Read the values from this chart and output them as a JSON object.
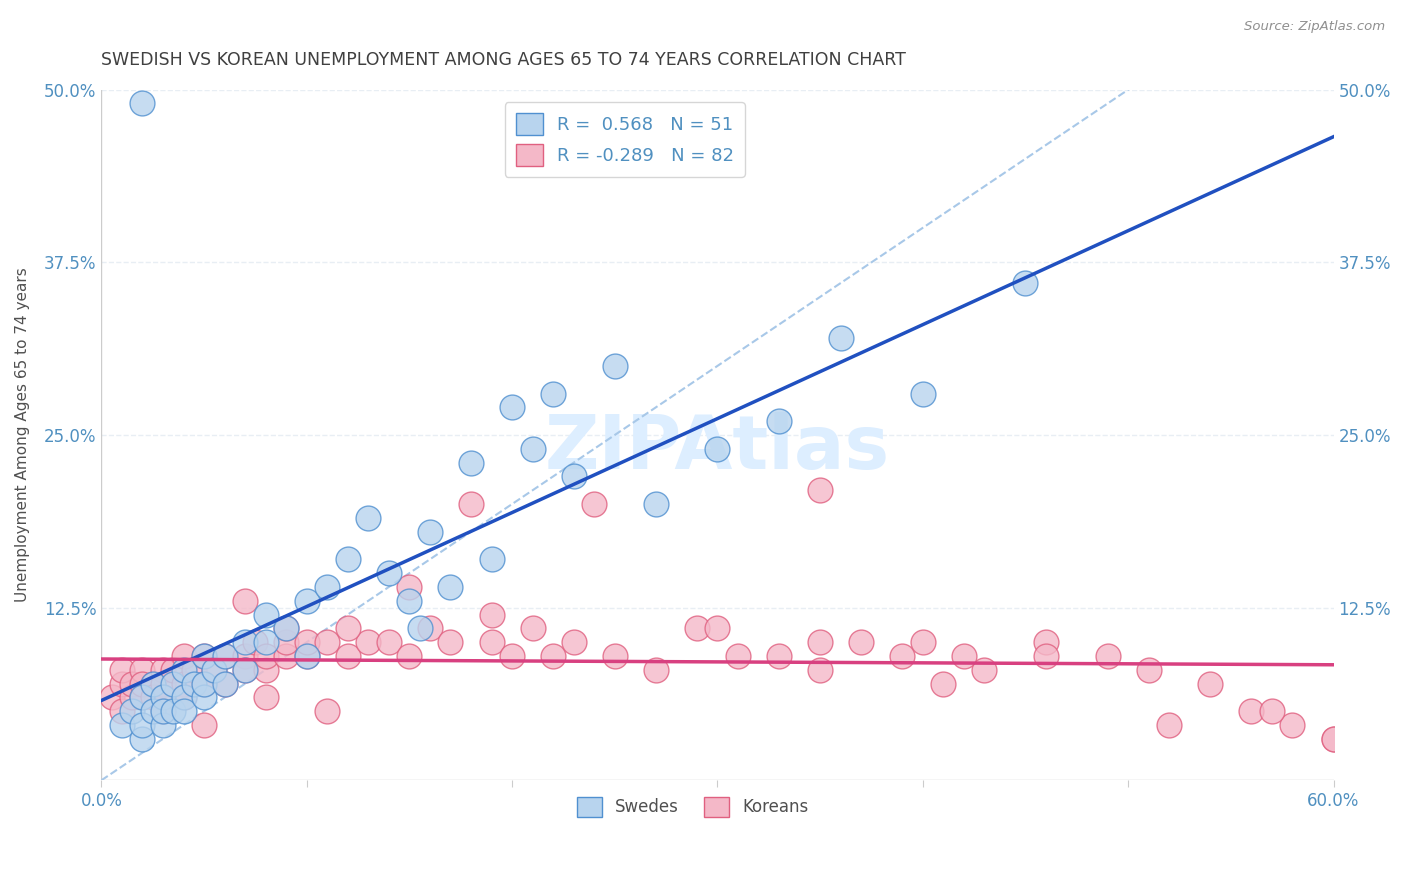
{
  "title": "SWEDISH VS KOREAN UNEMPLOYMENT AMONG AGES 65 TO 74 YEARS CORRELATION CHART",
  "source": "Source: ZipAtlas.com",
  "ylabel": "Unemployment Among Ages 65 to 74 years",
  "xlim": [
    0,
    0.6
  ],
  "ylim": [
    0,
    0.5
  ],
  "xticks": [
    0.0,
    0.1,
    0.2,
    0.3,
    0.4,
    0.5,
    0.6
  ],
  "xticklabels": [
    "0.0%",
    "",
    "",
    "",
    "",
    "",
    "60.0%"
  ],
  "ytick_positions": [
    0.0,
    0.125,
    0.25,
    0.375,
    0.5
  ],
  "ytick_labels_left": [
    "",
    "12.5%",
    "25.0%",
    "37.5%",
    "50.0%"
  ],
  "ytick_labels_right": [
    "",
    "12.5%",
    "25.0%",
    "37.5%",
    "50.0%"
  ],
  "legend_blue_r": "0.568",
  "legend_blue_n": "51",
  "legend_pink_r": "-0.289",
  "legend_pink_n": "82",
  "swede_fill": "#b8d4ee",
  "swede_edge": "#5090d0",
  "korean_fill": "#f4b8c8",
  "korean_edge": "#e06080",
  "blue_line_color": "#2050c0",
  "pink_line_color": "#d84080",
  "ref_line_color": "#a8c8e8",
  "title_color": "#404040",
  "source_color": "#909090",
  "axis_label_color": "#505050",
  "tick_color": "#5090c0",
  "watermark_color": "#ddeeff",
  "background_color": "#ffffff",
  "grid_color": "#e8eef4",
  "swedes_x": [
    0.01,
    0.015,
    0.02,
    0.02,
    0.02,
    0.025,
    0.025,
    0.03,
    0.03,
    0.03,
    0.035,
    0.035,
    0.04,
    0.04,
    0.04,
    0.045,
    0.05,
    0.05,
    0.05,
    0.055,
    0.06,
    0.06,
    0.07,
    0.07,
    0.08,
    0.08,
    0.09,
    0.1,
    0.1,
    0.11,
    0.12,
    0.13,
    0.14,
    0.15,
    0.155,
    0.16,
    0.17,
    0.18,
    0.19,
    0.2,
    0.21,
    0.22,
    0.23,
    0.25,
    0.27,
    0.3,
    0.33,
    0.36,
    0.4,
    0.45,
    0.02
  ],
  "swedes_y": [
    0.04,
    0.05,
    0.03,
    0.06,
    0.04,
    0.05,
    0.07,
    0.04,
    0.06,
    0.05,
    0.07,
    0.05,
    0.06,
    0.08,
    0.05,
    0.07,
    0.06,
    0.09,
    0.07,
    0.08,
    0.07,
    0.09,
    0.08,
    0.1,
    0.1,
    0.12,
    0.11,
    0.09,
    0.13,
    0.14,
    0.16,
    0.19,
    0.15,
    0.13,
    0.11,
    0.18,
    0.14,
    0.23,
    0.16,
    0.27,
    0.24,
    0.28,
    0.22,
    0.3,
    0.2,
    0.24,
    0.26,
    0.32,
    0.28,
    0.36,
    0.49
  ],
  "koreans_x": [
    0.005,
    0.01,
    0.01,
    0.01,
    0.015,
    0.015,
    0.02,
    0.02,
    0.02,
    0.025,
    0.025,
    0.03,
    0.03,
    0.03,
    0.035,
    0.04,
    0.04,
    0.04,
    0.045,
    0.05,
    0.05,
    0.055,
    0.06,
    0.06,
    0.07,
    0.07,
    0.075,
    0.08,
    0.08,
    0.09,
    0.09,
    0.1,
    0.1,
    0.11,
    0.12,
    0.13,
    0.14,
    0.15,
    0.16,
    0.17,
    0.18,
    0.19,
    0.2,
    0.21,
    0.22,
    0.23,
    0.25,
    0.27,
    0.29,
    0.31,
    0.33,
    0.35,
    0.37,
    0.39,
    0.41,
    0.43,
    0.46,
    0.49,
    0.51,
    0.54,
    0.56,
    0.58,
    0.6,
    0.07,
    0.09,
    0.12,
    0.15,
    0.19,
    0.24,
    0.3,
    0.35,
    0.4,
    0.46,
    0.52,
    0.57,
    0.6,
    0.03,
    0.05,
    0.08,
    0.11,
    0.35,
    0.42
  ],
  "koreans_y": [
    0.06,
    0.07,
    0.05,
    0.08,
    0.06,
    0.07,
    0.08,
    0.06,
    0.07,
    0.07,
    0.06,
    0.08,
    0.07,
    0.06,
    0.08,
    0.07,
    0.09,
    0.06,
    0.08,
    0.07,
    0.09,
    0.08,
    0.09,
    0.07,
    0.09,
    0.08,
    0.1,
    0.08,
    0.09,
    0.09,
    0.1,
    0.09,
    0.1,
    0.1,
    0.09,
    0.1,
    0.1,
    0.09,
    0.11,
    0.1,
    0.2,
    0.1,
    0.09,
    0.11,
    0.09,
    0.1,
    0.09,
    0.08,
    0.11,
    0.09,
    0.09,
    0.08,
    0.1,
    0.09,
    0.07,
    0.08,
    0.1,
    0.09,
    0.08,
    0.07,
    0.05,
    0.04,
    0.03,
    0.13,
    0.11,
    0.11,
    0.14,
    0.12,
    0.2,
    0.11,
    0.21,
    0.1,
    0.09,
    0.04,
    0.05,
    0.03,
    0.05,
    0.04,
    0.06,
    0.05,
    0.1,
    0.09
  ]
}
